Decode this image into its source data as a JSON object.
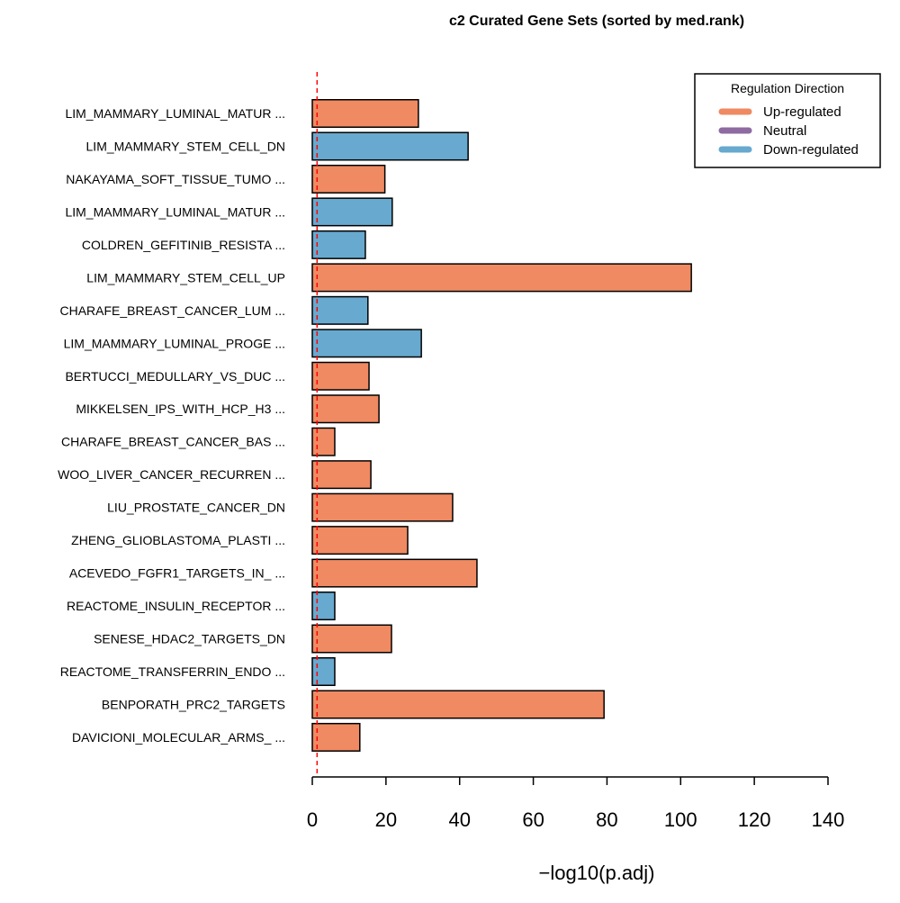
{
  "chart_data": {
    "type": "bar",
    "orientation": "horizontal",
    "title": "c2 Curated Gene Sets (sorted by med.rank)",
    "xlabel": "−log10(p.adj)",
    "ylabel": "",
    "xlim": [
      0,
      140
    ],
    "xticks": [
      "0",
      "20",
      "40",
      "60",
      "80",
      "100",
      "120",
      "140"
    ],
    "grid": false,
    "threshold_line": {
      "value": 1.3,
      "color": "#ff0000",
      "style": "dashed"
    },
    "categories": [
      "LIM_MAMMARY_LUMINAL_MATUR ...",
      "LIM_MAMMARY_STEM_CELL_DN",
      "NAKAYAMA_SOFT_TISSUE_TUMO ...",
      "LIM_MAMMARY_LUMINAL_MATUR ...",
      "COLDREN_GEFITINIB_RESISTA ...",
      "LIM_MAMMARY_STEM_CELL_UP",
      "CHARAFE_BREAST_CANCER_LUM ...",
      "LIM_MAMMARY_LUMINAL_PROGE ...",
      "BERTUCCI_MEDULLARY_VS_DUC ...",
      "MIKKELSEN_IPS_WITH_HCP_H3 ...",
      "CHARAFE_BREAST_CANCER_BAS ...",
      "WOO_LIVER_CANCER_RECURREN ...",
      "LIU_PROSTATE_CANCER_DN",
      "ZHENG_GLIOBLASTOMA_PLASTI ...",
      "ACEVEDO_FGFR1_TARGETS_IN_ ...",
      "REACTOME_INSULIN_RECEPTOR ...",
      "SENESE_HDAC2_TARGETS_DN",
      "REACTOME_TRANSFERRIN_ENDO ...",
      "BENPORATH_PRC2_TARGETS",
      "DAVICIONI_MOLECULAR_ARMS_ ..."
    ],
    "values": [
      28.8,
      42.3,
      19.7,
      21.7,
      14.4,
      102.9,
      15.1,
      29.6,
      15.4,
      18.1,
      6.1,
      15.9,
      38.1,
      25.9,
      44.7,
      6.1,
      21.5,
      6.1,
      79.2,
      12.9
    ],
    "direction": [
      "Up-regulated",
      "Down-regulated",
      "Up-regulated",
      "Down-regulated",
      "Down-regulated",
      "Up-regulated",
      "Down-regulated",
      "Down-regulated",
      "Up-regulated",
      "Up-regulated",
      "Up-regulated",
      "Up-regulated",
      "Up-regulated",
      "Up-regulated",
      "Up-regulated",
      "Down-regulated",
      "Up-regulated",
      "Down-regulated",
      "Up-regulated",
      "Up-regulated"
    ],
    "legend": {
      "title": "Regulation Direction",
      "placement": "top-right",
      "entries": [
        {
          "label": "Up-regulated",
          "color": "#ef8a62"
        },
        {
          "label": "Neutral",
          "color": "#8e6ba1"
        },
        {
          "label": "Down-regulated",
          "color": "#67a9cf"
        }
      ]
    }
  }
}
